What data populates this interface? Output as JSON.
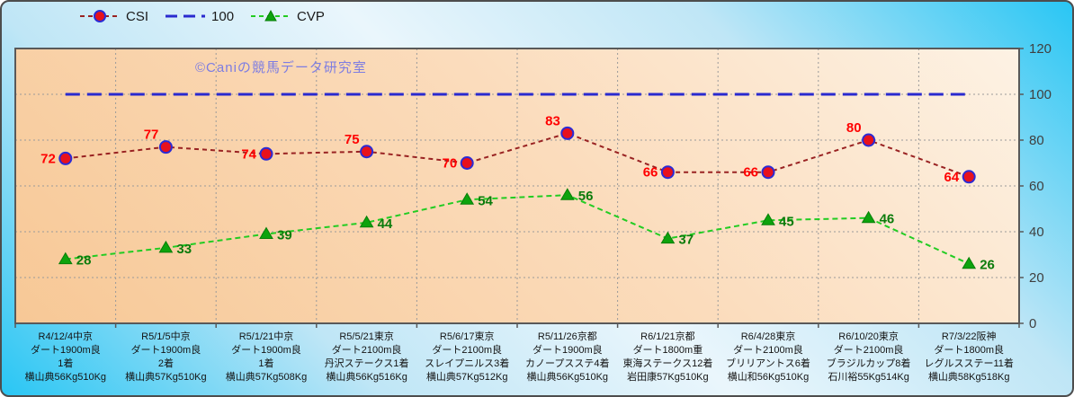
{
  "watermark": "©Caniの競馬データ研究室",
  "legend": [
    {
      "label": "CSI",
      "marker": "circle",
      "line_color": "#992222",
      "marker_fill": "#e8111c",
      "marker_stroke": "#2b2bd5",
      "dash": "5 4"
    },
    {
      "label": "100",
      "marker": "none",
      "line_color": "#2a2acf",
      "dash": "13 7"
    },
    {
      "label": "CVP",
      "marker": "triangle",
      "line_color": "#22cc22",
      "marker_fill": "#0da30d",
      "marker_stroke": "#087f08",
      "dash": "5 4"
    }
  ],
  "chart_data": {
    "type": "line",
    "title": "",
    "xlabel": "",
    "ylabel": "",
    "ylim": [
      0,
      120
    ],
    "yticks": [
      0,
      20,
      40,
      60,
      80,
      100,
      120
    ],
    "grid": true,
    "legend_position": "top",
    "plot_bg_colors": [
      "#fdf2e4",
      "#f7c896"
    ],
    "outer_bg_colors": [
      "#29c6f4",
      "#eaf6fc"
    ],
    "categories": [
      [
        "R4/12/4中京",
        "ダート1900m良",
        "1着",
        "横山典56Kg510Kg"
      ],
      [
        "R5/1/5中京",
        "ダート1900m良",
        "2着",
        "横山典57Kg510Kg"
      ],
      [
        "R5/1/21中京",
        "ダート1900m良",
        "1着",
        "横山典57Kg508Kg"
      ],
      [
        "R5/5/21東京",
        "ダート2100m良",
        "丹沢ステークス1着",
        "横山典56Kg516Kg"
      ],
      [
        "R5/6/17東京",
        "ダート2100m良",
        "スレイプニルス3着",
        "横山典57Kg512Kg"
      ],
      [
        "R5/11/26京都",
        "ダート1900m良",
        "カノープスステ4着",
        "横山典56Kg510Kg"
      ],
      [
        "R6/1/21京都",
        "ダート1800m重",
        "東海ステークス12着",
        "岩田康57Kg510Kg"
      ],
      [
        "R6/4/28東京",
        "ダート2100m良",
        "ブリリアントス6着",
        "横山和56Kg510Kg"
      ],
      [
        "R6/10/20東京",
        "ダート2100m良",
        "ブラジルカップ8着",
        "石川裕55Kg514Kg"
      ],
      [
        "R7/3/22阪神",
        "ダート1800m良",
        "レグルスステー11着",
        "横山典58Kg518Kg"
      ]
    ],
    "series": [
      {
        "name": "100",
        "values": [
          100,
          100,
          100,
          100,
          100,
          100,
          100,
          100,
          100,
          100
        ],
        "line_color": "#2a2acf",
        "line_width": 3,
        "dash": "16 8",
        "marker": "none",
        "labels": false
      },
      {
        "name": "CSI",
        "values": [
          72,
          77,
          74,
          75,
          70,
          83,
          66,
          66,
          80,
          64
        ],
        "line_color": "#992222",
        "line_width": 2,
        "dash": "5 4",
        "marker": "circle",
        "marker_fill": "#e8111c",
        "marker_stroke": "#2b2bd5",
        "labels": true,
        "label_color": "#ff0000",
        "label_side": "left"
      },
      {
        "name": "CVP",
        "values": [
          28,
          33,
          39,
          44,
          54,
          56,
          37,
          45,
          46,
          26
        ],
        "line_color": "#22cc22",
        "line_width": 2,
        "dash": "6 4",
        "marker": "triangle",
        "marker_fill": "#0da30d",
        "marker_stroke": "#087f08",
        "labels": true,
        "label_color": "#0b7b0b",
        "label_side": "right"
      }
    ]
  },
  "y_axis": {
    "tick_labels": [
      "0",
      "20",
      "40",
      "60",
      "80",
      "100",
      "120"
    ]
  }
}
